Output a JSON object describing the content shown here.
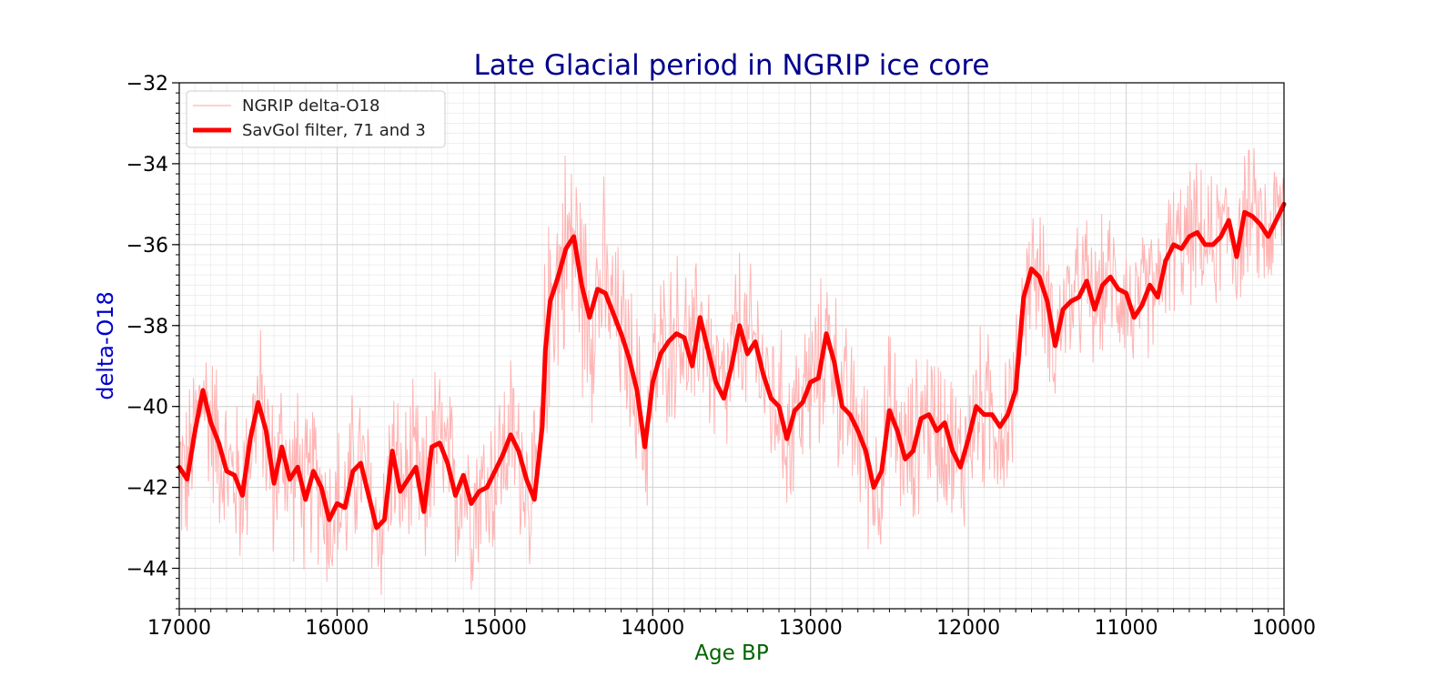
{
  "chart_data": {
    "type": "line",
    "title": "Late Glacial period in NGRIP ice core",
    "xlabel": "Age BP",
    "ylabel": "delta-O18",
    "xlim": [
      17000,
      10000
    ],
    "ylim": [
      -45,
      -32
    ],
    "x_reversed": true,
    "grid": "on (major and minor)",
    "legend_position": "top-left",
    "x_ticks": [
      17000,
      16000,
      15000,
      14000,
      13000,
      12000,
      11000,
      10000
    ],
    "y_ticks": [
      -44,
      -42,
      -40,
      -38,
      -36,
      -34,
      -32
    ],
    "x_tick_labels": [
      "17000",
      "16000",
      "15000",
      "14000",
      "13000",
      "12000",
      "11000",
      "10000"
    ],
    "y_tick_labels": [
      "−44",
      "−42",
      "−40",
      "−38",
      "−36",
      "−34",
      "−32"
    ],
    "colors": {
      "raw": "#ffb3b3",
      "smooth": "#ff0000",
      "title": "#00008b",
      "ylabel": "#0000cd",
      "xlabel": "#006400"
    },
    "series": [
      {
        "name": "NGRIP delta-O18",
        "style": "thin-light",
        "x": [
          17000,
          16950,
          16900,
          16850,
          16800,
          16750,
          16700,
          16650,
          16600,
          16550,
          16500,
          16450,
          16400,
          16350,
          16300,
          16250,
          16200,
          16150,
          16100,
          16050,
          16000,
          15950,
          15900,
          15850,
          15800,
          15750,
          15700,
          15650,
          15600,
          15550,
          15500,
          15450,
          15400,
          15350,
          15300,
          15250,
          15200,
          15150,
          15100,
          15050,
          15000,
          14950,
          14900,
          14850,
          14800,
          14750,
          14700,
          14680,
          14650,
          14600,
          14550,
          14500,
          14450,
          14400,
          14350,
          14300,
          14250,
          14200,
          14150,
          14100,
          14050,
          14000,
          13950,
          13900,
          13850,
          13800,
          13750,
          13700,
          13650,
          13600,
          13550,
          13500,
          13450,
          13400,
          13350,
          13300,
          13250,
          13200,
          13150,
          13100,
          13050,
          13000,
          12950,
          12900,
          12850,
          12800,
          12750,
          12700,
          12650,
          12600,
          12550,
          12500,
          12450,
          12400,
          12350,
          12300,
          12250,
          12200,
          12150,
          12100,
          12050,
          12000,
          11950,
          11900,
          11850,
          11800,
          11750,
          11700,
          11650,
          11600,
          11550,
          11500,
          11450,
          11400,
          11350,
          11300,
          11250,
          11200,
          11150,
          11100,
          11050,
          11000,
          10950,
          10900,
          10850,
          10800,
          10750,
          10700,
          10650,
          10600,
          10550,
          10500,
          10450,
          10400,
          10350,
          10300,
          10250,
          10200,
          10150,
          10100,
          10050,
          10000
        ],
        "y": [
          -41.5,
          -41.8,
          -40.6,
          -39.6,
          -40.4,
          -40.9,
          -41.6,
          -41.7,
          -42.2,
          -40.8,
          -39.9,
          -40.6,
          -41.9,
          -41.0,
          -41.8,
          -41.5,
          -42.3,
          -41.6,
          -42.0,
          -42.8,
          -42.4,
          -42.5,
          -41.6,
          -41.4,
          -42.2,
          -43.0,
          -42.8,
          -41.1,
          -42.1,
          -41.8,
          -41.5,
          -42.6,
          -41.0,
          -40.9,
          -41.4,
          -42.2,
          -41.7,
          -42.4,
          -42.1,
          -42.0,
          -41.6,
          -41.2,
          -40.7,
          -41.1,
          -41.8,
          -42.3,
          -40.5,
          -38.6,
          -37.4,
          -36.8,
          -36.1,
          -35.8,
          -37.0,
          -37.8,
          -37.1,
          -37.2,
          -37.7,
          -38.2,
          -38.8,
          -39.6,
          -41.0,
          -39.4,
          -38.7,
          -38.4,
          -38.2,
          -38.3,
          -39.0,
          -37.8,
          -38.6,
          -39.4,
          -39.8,
          -39.0,
          -38.0,
          -38.7,
          -38.4,
          -39.2,
          -39.8,
          -40.0,
          -40.8,
          -40.1,
          -39.9,
          -39.4,
          -39.3,
          -38.2,
          -38.9,
          -40.0,
          -40.2,
          -40.6,
          -41.1,
          -42.0,
          -41.6,
          -40.1,
          -40.6,
          -41.3,
          -41.1,
          -40.3,
          -40.2,
          -40.6,
          -40.4,
          -41.1,
          -41.5,
          -40.8,
          -40.0,
          -40.2,
          -40.2,
          -40.5,
          -40.2,
          -39.6,
          -37.3,
          -36.6,
          -36.8,
          -37.4,
          -38.5,
          -37.6,
          -37.4,
          -37.3,
          -36.9,
          -37.6,
          -37.0,
          -36.8,
          -37.1,
          -37.2,
          -37.8,
          -37.5,
          -37.0,
          -37.3,
          -36.4,
          -36.0,
          -36.1,
          -35.8,
          -35.7,
          -36.0,
          -36.0,
          -35.8,
          -35.4,
          -36.3,
          -35.2,
          -35.3,
          -35.5,
          -35.8,
          -35.4,
          -35.0
        ]
      },
      {
        "name": "SavGol filter, 71 and 3",
        "style": "thick-red",
        "x": [
          17000,
          16950,
          16900,
          16850,
          16800,
          16750,
          16700,
          16650,
          16600,
          16550,
          16500,
          16450,
          16400,
          16350,
          16300,
          16250,
          16200,
          16150,
          16100,
          16050,
          16000,
          15950,
          15900,
          15850,
          15800,
          15750,
          15700,
          15650,
          15600,
          15550,
          15500,
          15450,
          15400,
          15350,
          15300,
          15250,
          15200,
          15150,
          15100,
          15050,
          15000,
          14950,
          14900,
          14850,
          14800,
          14750,
          14700,
          14680,
          14650,
          14600,
          14550,
          14500,
          14450,
          14400,
          14350,
          14300,
          14250,
          14200,
          14150,
          14100,
          14050,
          14000,
          13950,
          13900,
          13850,
          13800,
          13750,
          13700,
          13650,
          13600,
          13550,
          13500,
          13450,
          13400,
          13350,
          13300,
          13250,
          13200,
          13150,
          13100,
          13050,
          13000,
          12950,
          12900,
          12850,
          12800,
          12750,
          12700,
          12650,
          12600,
          12550,
          12500,
          12450,
          12400,
          12350,
          12300,
          12250,
          12200,
          12150,
          12100,
          12050,
          12000,
          11950,
          11900,
          11850,
          11800,
          11750,
          11700,
          11650,
          11600,
          11550,
          11500,
          11450,
          11400,
          11350,
          11300,
          11250,
          11200,
          11150,
          11100,
          11050,
          11000,
          10950,
          10900,
          10850,
          10800,
          10750,
          10700,
          10650,
          10600,
          10550,
          10500,
          10450,
          10400,
          10350,
          10300,
          10250,
          10200,
          10150,
          10100,
          10050,
          10000
        ],
        "y": [
          -41.5,
          -41.8,
          -40.6,
          -39.6,
          -40.4,
          -40.9,
          -41.6,
          -41.7,
          -42.2,
          -40.8,
          -39.9,
          -40.6,
          -41.9,
          -41.0,
          -41.8,
          -41.5,
          -42.3,
          -41.6,
          -42.0,
          -42.8,
          -42.4,
          -42.5,
          -41.6,
          -41.4,
          -42.2,
          -43.0,
          -42.8,
          -41.1,
          -42.1,
          -41.8,
          -41.5,
          -42.6,
          -41.0,
          -40.9,
          -41.4,
          -42.2,
          -41.7,
          -42.4,
          -42.1,
          -42.0,
          -41.6,
          -41.2,
          -40.7,
          -41.1,
          -41.8,
          -42.3,
          -40.5,
          -38.6,
          -37.4,
          -36.8,
          -36.1,
          -35.8,
          -37.0,
          -37.8,
          -37.1,
          -37.2,
          -37.7,
          -38.2,
          -38.8,
          -39.6,
          -41.0,
          -39.4,
          -38.7,
          -38.4,
          -38.2,
          -38.3,
          -39.0,
          -37.8,
          -38.6,
          -39.4,
          -39.8,
          -39.0,
          -38.0,
          -38.7,
          -38.4,
          -39.2,
          -39.8,
          -40.0,
          -40.8,
          -40.1,
          -39.9,
          -39.4,
          -39.3,
          -38.2,
          -38.9,
          -40.0,
          -40.2,
          -40.6,
          -41.1,
          -42.0,
          -41.6,
          -40.1,
          -40.6,
          -41.3,
          -41.1,
          -40.3,
          -40.2,
          -40.6,
          -40.4,
          -41.1,
          -41.5,
          -40.8,
          -40.0,
          -40.2,
          -40.2,
          -40.5,
          -40.2,
          -39.6,
          -37.3,
          -36.6,
          -36.8,
          -37.4,
          -38.5,
          -37.6,
          -37.4,
          -37.3,
          -36.9,
          -37.6,
          -37.0,
          -36.8,
          -37.1,
          -37.2,
          -37.8,
          -37.5,
          -37.0,
          -37.3,
          -36.4,
          -36.0,
          -36.1,
          -35.8,
          -35.7,
          -36.0,
          -36.0,
          -35.8,
          -35.4,
          -36.3,
          -35.2,
          -35.3,
          -35.5,
          -35.8,
          -35.4,
          -35.0
        ]
      }
    ]
  }
}
